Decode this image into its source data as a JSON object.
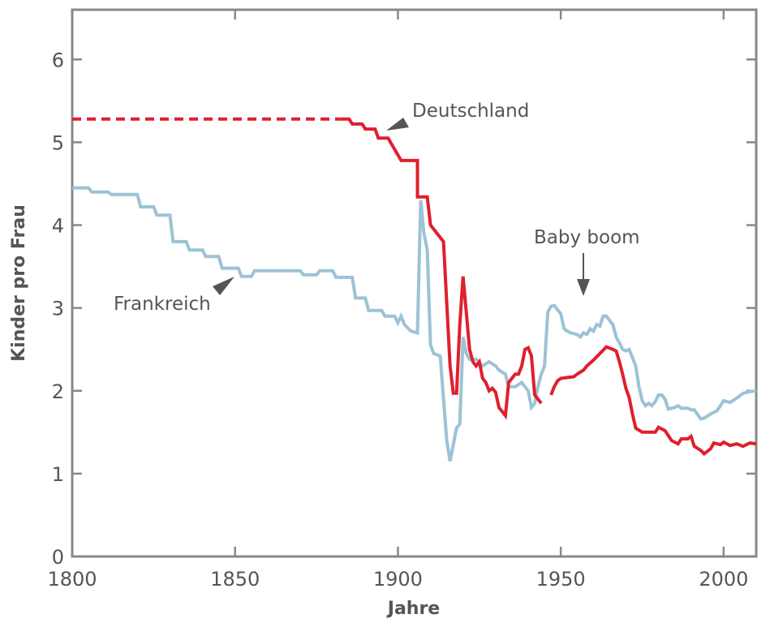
{
  "chart_data": {
    "type": "line",
    "title": "",
    "xlabel": "Jahre",
    "ylabel": "Kinder pro Frau",
    "xlim": [
      1800,
      2010
    ],
    "ylim": [
      0,
      6.6
    ],
    "xticks": [
      1800,
      1850,
      1900,
      1950,
      2000
    ],
    "yticks": [
      0,
      1,
      2,
      3,
      4,
      5,
      6
    ],
    "grid": false,
    "colors": {
      "deutschland": "#e01f2d",
      "frankreich": "#9cc3d5",
      "axis": "#888888",
      "text": "#555555"
    },
    "annotations": {
      "deutschland": "Deutschland",
      "frankreich": "Frankreich",
      "babyboom": "Baby boom"
    },
    "series": [
      {
        "name": "Deutschland",
        "segments": [
          {
            "style": "dashed",
            "points": [
              [
                1800,
                5.28
              ],
              [
                1882,
                5.28
              ]
            ]
          },
          {
            "style": "solid",
            "points": [
              [
                1882,
                5.28
              ],
              [
                1885,
                5.28
              ],
              [
                1886,
                5.22
              ],
              [
                1889,
                5.22
              ],
              [
                1890,
                5.16
              ],
              [
                1893,
                5.16
              ],
              [
                1894,
                5.05
              ],
              [
                1897,
                5.05
              ],
              [
                1898,
                4.98
              ],
              [
                1901,
                4.78
              ],
              [
                1906,
                4.78
              ],
              [
                1906,
                4.34
              ],
              [
                1909,
                4.34
              ],
              [
                1910,
                4.0
              ],
              [
                1911,
                3.95
              ],
              [
                1914,
                3.8
              ],
              [
                1916,
                2.3
              ],
              [
                1917,
                1.97
              ],
              [
                1918,
                1.97
              ],
              [
                1919,
                2.8
              ],
              [
                1920,
                3.38
              ],
              [
                1921,
                2.95
              ],
              [
                1922,
                2.5
              ],
              [
                1923,
                2.35
              ],
              [
                1924,
                2.3
              ],
              [
                1925,
                2.35
              ],
              [
                1926,
                2.15
              ],
              [
                1927,
                2.1
              ],
              [
                1928,
                2.0
              ],
              [
                1929,
                2.03
              ],
              [
                1930,
                1.98
              ],
              [
                1931,
                1.8
              ],
              [
                1932,
                1.75
              ],
              [
                1933,
                1.7
              ],
              [
                1934,
                2.1
              ],
              [
                1935,
                2.15
              ],
              [
                1936,
                2.2
              ],
              [
                1937,
                2.2
              ],
              [
                1938,
                2.3
              ],
              [
                1939,
                2.5
              ],
              [
                1940,
                2.52
              ],
              [
                1941,
                2.42
              ],
              [
                1942,
                1.95
              ],
              [
                1943,
                1.9
              ],
              [
                1944,
                1.85
              ]
            ]
          },
          {
            "style": "solid",
            "points": [
              [
                1947,
                1.95
              ],
              [
                1948,
                2.05
              ],
              [
                1949,
                2.12
              ],
              [
                1950,
                2.15
              ],
              [
                1954,
                2.17
              ],
              [
                1955,
                2.2
              ],
              [
                1957,
                2.25
              ],
              [
                1958,
                2.3
              ],
              [
                1960,
                2.37
              ],
              [
                1962,
                2.45
              ],
              [
                1964,
                2.53
              ],
              [
                1966,
                2.5
              ],
              [
                1967,
                2.48
              ],
              [
                1968,
                2.35
              ],
              [
                1969,
                2.2
              ],
              [
                1970,
                2.03
              ],
              [
                1971,
                1.92
              ],
              [
                1972,
                1.72
              ],
              [
                1973,
                1.55
              ],
              [
                1975,
                1.5
              ],
              [
                1976,
                1.5
              ],
              [
                1978,
                1.5
              ],
              [
                1979,
                1.5
              ],
              [
                1980,
                1.56
              ],
              [
                1982,
                1.52
              ],
              [
                1984,
                1.4
              ],
              [
                1986,
                1.36
              ],
              [
                1987,
                1.42
              ],
              [
                1989,
                1.42
              ],
              [
                1990,
                1.45
              ],
              [
                1991,
                1.33
              ],
              [
                1993,
                1.28
              ],
              [
                1994,
                1.24
              ],
              [
                1996,
                1.3
              ],
              [
                1997,
                1.37
              ],
              [
                1999,
                1.35
              ],
              [
                2000,
                1.38
              ],
              [
                2002,
                1.34
              ],
              [
                2004,
                1.36
              ],
              [
                2006,
                1.33
              ],
              [
                2008,
                1.37
              ],
              [
                2010,
                1.36
              ]
            ]
          }
        ]
      },
      {
        "name": "Frankreich",
        "segments": [
          {
            "style": "solid",
            "points": [
              [
                1800,
                4.45
              ],
              [
                1805,
                4.45
              ],
              [
                1806,
                4.4
              ],
              [
                1811,
                4.4
              ],
              [
                1812,
                4.37
              ],
              [
                1820,
                4.37
              ],
              [
                1821,
                4.22
              ],
              [
                1825,
                4.22
              ],
              [
                1826,
                4.12
              ],
              [
                1830,
                4.12
              ],
              [
                1831,
                3.8
              ],
              [
                1835,
                3.8
              ],
              [
                1836,
                3.7
              ],
              [
                1840,
                3.7
              ],
              [
                1841,
                3.62
              ],
              [
                1845,
                3.62
              ],
              [
                1846,
                3.48
              ],
              [
                1851,
                3.48
              ],
              [
                1852,
                3.38
              ],
              [
                1855,
                3.38
              ],
              [
                1856,
                3.45
              ],
              [
                1870,
                3.45
              ],
              [
                1871,
                3.4
              ],
              [
                1875,
                3.4
              ],
              [
                1876,
                3.45
              ],
              [
                1880,
                3.45
              ],
              [
                1881,
                3.37
              ],
              [
                1886,
                3.37
              ],
              [
                1887,
                3.12
              ],
              [
                1890,
                3.12
              ],
              [
                1891,
                2.97
              ],
              [
                1895,
                2.97
              ],
              [
                1896,
                2.9
              ],
              [
                1899,
                2.9
              ],
              [
                1900,
                2.82
              ],
              [
                1901,
                2.9
              ],
              [
                1902,
                2.8
              ],
              [
                1904,
                2.72
              ],
              [
                1906,
                2.7
              ],
              [
                1907,
                4.3
              ],
              [
                1908,
                3.9
              ],
              [
                1909,
                3.7
              ],
              [
                1910,
                2.55
              ],
              [
                1911,
                2.45
              ],
              [
                1913,
                2.42
              ],
              [
                1914,
                1.9
              ],
              [
                1915,
                1.4
              ],
              [
                1916,
                1.15
              ],
              [
                1917,
                1.35
              ],
              [
                1918,
                1.55
              ],
              [
                1919,
                1.6
              ],
              [
                1920,
                2.65
              ],
              [
                1921,
                2.45
              ],
              [
                1922,
                2.38
              ],
              [
                1924,
                2.38
              ],
              [
                1926,
                2.3
              ],
              [
                1928,
                2.35
              ],
              [
                1930,
                2.3
              ],
              [
                1931,
                2.25
              ],
              [
                1933,
                2.2
              ],
              [
                1934,
                2.05
              ],
              [
                1936,
                2.05
              ],
              [
                1938,
                2.1
              ],
              [
                1939,
                2.05
              ],
              [
                1940,
                2.0
              ],
              [
                1941,
                1.8
              ],
              [
                1942,
                1.85
              ],
              [
                1943,
                2.05
              ],
              [
                1944,
                2.2
              ],
              [
                1945,
                2.3
              ],
              [
                1946,
                2.95
              ],
              [
                1947,
                3.02
              ],
              [
                1948,
                3.03
              ],
              [
                1949,
                2.98
              ],
              [
                1950,
                2.93
              ],
              [
                1951,
                2.75
              ],
              [
                1952,
                2.72
              ],
              [
                1953,
                2.7
              ],
              [
                1955,
                2.68
              ],
              [
                1956,
                2.65
              ],
              [
                1957,
                2.7
              ],
              [
                1958,
                2.68
              ],
              [
                1959,
                2.75
              ],
              [
                1960,
                2.72
              ],
              [
                1961,
                2.8
              ],
              [
                1962,
                2.78
              ],
              [
                1963,
                2.9
              ],
              [
                1964,
                2.9
              ],
              [
                1965,
                2.85
              ],
              [
                1966,
                2.8
              ],
              [
                1967,
                2.65
              ],
              [
                1968,
                2.58
              ],
              [
                1969,
                2.5
              ],
              [
                1970,
                2.48
              ],
              [
                1971,
                2.5
              ],
              [
                1972,
                2.4
              ],
              [
                1973,
                2.3
              ],
              [
                1974,
                2.05
              ],
              [
                1975,
                1.88
              ],
              [
                1976,
                1.82
              ],
              [
                1977,
                1.85
              ],
              [
                1978,
                1.82
              ],
              [
                1979,
                1.87
              ],
              [
                1980,
                1.95
              ],
              [
                1981,
                1.95
              ],
              [
                1982,
                1.9
              ],
              [
                1983,
                1.78
              ],
              [
                1985,
                1.8
              ],
              [
                1986,
                1.82
              ],
              [
                1987,
                1.79
              ],
              [
                1989,
                1.79
              ],
              [
                1990,
                1.77
              ],
              [
                1991,
                1.77
              ],
              [
                1993,
                1.66
              ],
              [
                1994,
                1.67
              ],
              [
                1996,
                1.72
              ],
              [
                1998,
                1.76
              ],
              [
                2000,
                1.88
              ],
              [
                2002,
                1.86
              ],
              [
                2004,
                1.91
              ],
              [
                2006,
                1.97
              ],
              [
                2008,
                1.99
              ],
              [
                2010,
                2.0
              ]
            ]
          }
        ]
      }
    ]
  }
}
